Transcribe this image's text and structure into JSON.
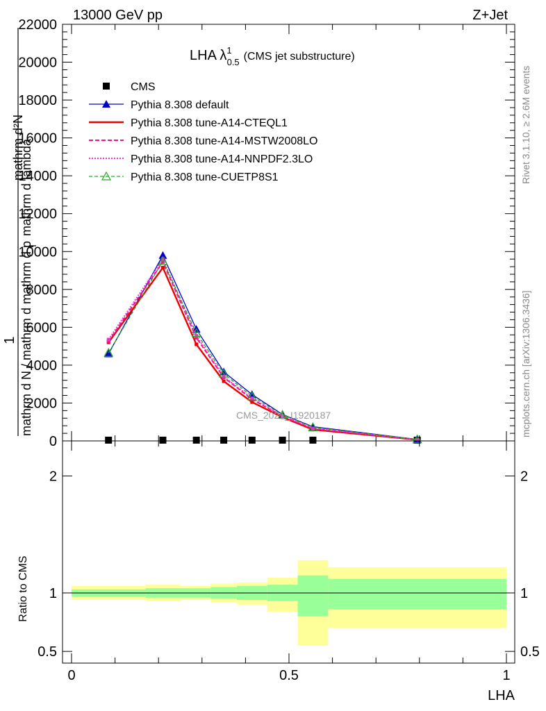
{
  "header": {
    "left": "13000 GeV pp",
    "right": "Z+Jet"
  },
  "side_labels": {
    "rivet": "Rivet 3.1.10, ≥ 2.6M events",
    "mcplots": "mcplots.cern.ch [arXiv:1306.3436]"
  },
  "watermark": "CMS_2021_I1920187",
  "chart_data": [
    {
      "type": "line",
      "title_main": "LHA λ",
      "title_sup": "1",
      "title_sub": "0.5",
      "title_suffix": "(CMS jet substructure)",
      "ylabel_num": "1",
      "ylabel_den_1": "mathrm d N / mathrm d mathrm d p",
      "ylabel_den_sub": "T",
      "ylabel_den_2": "mathrm d lambda",
      "ylabel_num_top": "mathrm d²N",
      "xlim": [
        0,
        1
      ],
      "ylim": [
        0,
        22000
      ],
      "y_ticks": [
        0,
        2000,
        4000,
        6000,
        8000,
        10000,
        12000,
        14000,
        16000,
        18000,
        20000,
        22000
      ],
      "y_tick_labels": [
        "0",
        "2000",
        "4000",
        "6000",
        "8000",
        "10000",
        "12000",
        "14000",
        "16000",
        "18000",
        "20000",
        "22000"
      ],
      "x": [
        0.085,
        0.21,
        0.287,
        0.35,
        0.415,
        0.485,
        0.555,
        0.795
      ],
      "series": [
        {
          "name": "CMS",
          "color": "#000000",
          "style": "square",
          "values": [
            40,
            40,
            40,
            40,
            40,
            40,
            40,
            40
          ]
        },
        {
          "name": "Pythia 8.308 default",
          "color": "#0000cc",
          "style": "solid-triangle",
          "values": [
            4600,
            9800,
            5900,
            3650,
            2450,
            1400,
            750,
            80
          ]
        },
        {
          "name": "Pythia 8.308 tune-A14-CTEQL1",
          "color": "#ee0000",
          "style": "thick-solid",
          "values": [
            5200,
            9150,
            5100,
            3150,
            2050,
            1250,
            600,
            60
          ]
        },
        {
          "name": "Pythia 8.308 tune-A14-MSTW2008LO",
          "color": "#ee1188",
          "style": "dashed",
          "values": [
            5250,
            9450,
            5450,
            3350,
            2200,
            1300,
            650,
            70
          ]
        },
        {
          "name": "Pythia 8.308 tune-A14-NNPDF2.3LO",
          "color": "#ee33cc",
          "style": "dotted",
          "values": [
            5350,
            9600,
            5550,
            3400,
            2250,
            1320,
            660,
            70
          ]
        },
        {
          "name": "Pythia 8.308 tune-CUETP8S1",
          "color": "#22aa22",
          "style": "dashed-open-triangle",
          "values": [
            4650,
            9500,
            5700,
            3550,
            2350,
            1380,
            720,
            80
          ]
        }
      ]
    },
    {
      "type": "area",
      "ylabel": "Ratio to CMS",
      "xlabel": "LHA",
      "xlim": [
        0,
        1
      ],
      "ylim": [
        0.4,
        2.3
      ],
      "x_ticks": [
        0,
        0.5,
        1
      ],
      "x_tick_labels": [
        "0",
        "0.5",
        "1"
      ],
      "y_ticks": [
        0.5,
        1,
        2
      ],
      "y_tick_labels": [
        "0.5",
        "1",
        "2"
      ],
      "bin_edges": [
        0,
        0.17,
        0.25,
        0.32,
        0.38,
        0.45,
        0.52,
        0.59,
        1.0
      ],
      "stat_band_up": [
        1.03,
        1.04,
        1.04,
        1.05,
        1.06,
        1.07,
        1.15,
        1.12
      ],
      "stat_band_down": [
        0.97,
        0.96,
        0.96,
        0.95,
        0.94,
        0.93,
        0.8,
        0.86
      ],
      "total_band_up": [
        1.06,
        1.07,
        1.06,
        1.08,
        1.09,
        1.13,
        1.28,
        1.22
      ],
      "total_band_down": [
        0.94,
        0.93,
        0.94,
        0.92,
        0.9,
        0.84,
        0.55,
        0.7
      ],
      "stat_color": "#99ff99",
      "total_color": "#ffff99"
    }
  ]
}
